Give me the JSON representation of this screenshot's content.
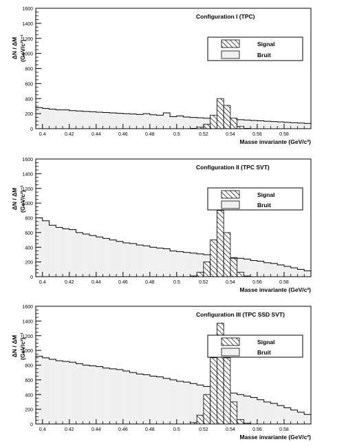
{
  "chart_data": [
    {
      "type": "histogram",
      "title": "Configuration I (TPC)",
      "ylabel_main": "ΔN / ΔM",
      "ylabel_unit": "(GeV/c²)⁻¹",
      "xlabel": "Masse invariante (GeV/c²)",
      "xlim": [
        0.395,
        0.6
      ],
      "ylim": [
        0,
        1600
      ],
      "x_ticks": [
        "0.4",
        "0.42",
        "0.44",
        "0.46",
        "0.48",
        "0.5",
        "0.52",
        "0.54",
        "0.56",
        "0.58"
      ],
      "y_ticks": [
        "0",
        "200",
        "400",
        "600",
        "800",
        "1000",
        "1200",
        "1400",
        "1600"
      ],
      "legend": [
        {
          "label": "Signal",
          "style": "hatched"
        },
        {
          "label": "Bruit",
          "style": "gray"
        }
      ],
      "legend_position": "upper-right",
      "bin_edges_start": 0.395,
      "bin_width": 0.005,
      "series": [
        {
          "name": "Bruit",
          "values": [
            280,
            270,
            260,
            250,
            250,
            240,
            235,
            230,
            225,
            220,
            215,
            210,
            205,
            200,
            195,
            190,
            200,
            185,
            180,
            210,
            160,
            170,
            155,
            150,
            145,
            140,
            135,
            130,
            128,
            125,
            120,
            115,
            110,
            105,
            100,
            95,
            90,
            85,
            80,
            75,
            70
          ]
        },
        {
          "name": "Signal",
          "values": [
            0,
            0,
            0,
            0,
            0,
            0,
            0,
            0,
            0,
            0,
            0,
            0,
            0,
            0,
            0,
            0,
            0,
            0,
            0,
            0,
            0,
            0,
            0,
            5,
            20,
            60,
            180,
            400,
            310,
            140,
            30,
            5,
            0,
            0,
            0,
            0,
            0,
            0,
            0,
            0,
            0
          ]
        }
      ]
    },
    {
      "type": "histogram",
      "title": "Configuration II (TPC SVT)",
      "ylabel_main": "ΔN / ΔM",
      "ylabel_unit": "(GeV/c²)⁻¹",
      "xlabel": "Masse invariante (GeV/c²)",
      "xlim": [
        0.395,
        0.6
      ],
      "ylim": [
        0,
        1600
      ],
      "x_ticks": [
        "0.4",
        "0.42",
        "0.44",
        "0.46",
        "0.48",
        "0.5",
        "0.52",
        "0.54",
        "0.56",
        "0.58"
      ],
      "y_ticks": [
        "0",
        "200",
        "400",
        "600",
        "800",
        "1000",
        "1200",
        "1400",
        "1600"
      ],
      "legend": [
        {
          "label": "Signal",
          "style": "hatched"
        },
        {
          "label": "Bruit",
          "style": "gray"
        }
      ],
      "legend_position": "upper-right",
      "bin_edges_start": 0.395,
      "bin_width": 0.005,
      "series": [
        {
          "name": "Bruit",
          "values": [
            800,
            760,
            700,
            670,
            650,
            640,
            600,
            580,
            560,
            540,
            520,
            500,
            480,
            460,
            450,
            430,
            420,
            400,
            390,
            380,
            350,
            340,
            330,
            320,
            310,
            300,
            290,
            280,
            270,
            260,
            250,
            240,
            220,
            210,
            190,
            180,
            160,
            140,
            120,
            100,
            80
          ]
        },
        {
          "name": "Signal",
          "values": [
            0,
            0,
            0,
            0,
            0,
            0,
            0,
            0,
            0,
            0,
            0,
            0,
            0,
            0,
            0,
            0,
            0,
            0,
            0,
            0,
            0,
            0,
            0,
            10,
            60,
            200,
            500,
            900,
            600,
            250,
            60,
            10,
            0,
            0,
            0,
            0,
            0,
            0,
            0,
            0,
            0
          ]
        }
      ]
    },
    {
      "type": "histogram",
      "title": "Configuration III (TPC SSD SVT)",
      "ylabel_main": "ΔN / ΔM",
      "ylabel_unit": "(GeV/c²)⁻¹",
      "xlabel": "Masse invariante (GeV/c²)",
      "xlim": [
        0.395,
        0.6
      ],
      "ylim": [
        0,
        1600
      ],
      "x_ticks": [
        "0.4",
        "0.42",
        "0.44",
        "0.46",
        "0.48",
        "0.5",
        "0.52",
        "0.54",
        "0.56",
        "0.58"
      ],
      "y_ticks": [
        "0",
        "200",
        "400",
        "600",
        "800",
        "1000",
        "1200",
        "1400",
        "1600"
      ],
      "legend": [
        {
          "label": "Signal",
          "style": "hatched"
        },
        {
          "label": "Bruit",
          "style": "gray"
        }
      ],
      "legend_position": "upper-right",
      "bin_edges_start": 0.395,
      "bin_width": 0.005,
      "series": [
        {
          "name": "Bruit",
          "values": [
            920,
            900,
            880,
            860,
            850,
            840,
            820,
            800,
            790,
            780,
            760,
            750,
            740,
            720,
            700,
            680,
            670,
            650,
            640,
            620,
            600,
            580,
            570,
            550,
            530,
            510,
            490,
            470,
            450,
            420,
            400,
            380,
            360,
            330,
            300,
            280,
            250,
            220,
            190,
            160,
            130
          ]
        },
        {
          "name": "Signal",
          "values": [
            0,
            0,
            0,
            0,
            0,
            0,
            0,
            0,
            0,
            0,
            0,
            0,
            0,
            0,
            0,
            0,
            0,
            0,
            0,
            0,
            0,
            0,
            0,
            20,
            120,
            400,
            900,
            1370,
            900,
            300,
            60,
            10,
            0,
            0,
            0,
            0,
            0,
            0,
            0,
            0,
            0
          ]
        }
      ]
    }
  ]
}
